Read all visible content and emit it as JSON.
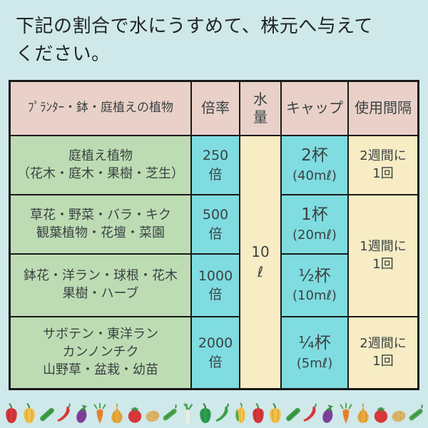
{
  "page": {
    "heading_line1": "下記の割合で水にうすめて、株元へ与えて",
    "heading_line2": "ください。"
  },
  "table": {
    "headers": {
      "plants": "ﾌﾟﾗﾝﾀｰ・鉢・庭植えの植物",
      "ratio": "倍率",
      "water": "水量",
      "cap": "キャップ",
      "interval": "使用間隔"
    },
    "water_amount": {
      "value": "10",
      "unit": "ℓ"
    },
    "merged_interval": {
      "line1": "1週間に",
      "line2": "1回"
    },
    "rows": [
      {
        "plants": [
          "庭植え植物",
          "（花木・庭木・果樹・芝生）"
        ],
        "ratio_value": "250",
        "ratio_unit": "倍",
        "cap": "2杯",
        "cap_ml": "(40mℓ)",
        "interval_line1": "2週間に",
        "interval_line2": "1回"
      },
      {
        "plants": [
          "草花・野菜・バラ・キク",
          "観葉植物・花壇・菜園"
        ],
        "ratio_value": "500",
        "ratio_unit": "倍",
        "cap": "1杯",
        "cap_ml": "(20mℓ)"
      },
      {
        "plants": [
          "鉢花・洋ラン・球根・花木",
          "果樹・ハーブ"
        ],
        "ratio_value": "1000",
        "ratio_unit": "倍",
        "cap": "½杯",
        "cap_ml": "(10mℓ)"
      },
      {
        "plants": [
          "サボテン・東洋ラン",
          "カンノンチク",
          "山野草・盆栽・幼苗"
        ],
        "ratio_value": "2000",
        "ratio_unit": "倍",
        "cap": "¼杯",
        "cap_ml": "(5mℓ)",
        "interval_line1": "2週間に",
        "interval_line2": "1回"
      }
    ]
  },
  "colors": {
    "page_background": "#cfe8ea",
    "header_cell": "#e9d1c9",
    "plants_cell": "#bddcb3",
    "highlight_cell": "#7fdce0",
    "neutral_cell": "#f7ecc3",
    "border": "#191919"
  },
  "footer": {
    "vegetables": [
      "red-bell-pepper",
      "yellow-bell-pepper",
      "cucumber",
      "red-chili",
      "eggplant",
      "carrot",
      "onion",
      "tomato",
      "potato",
      "pea",
      "green-onion",
      "green-bell-pepper",
      "green-chili",
      "corn",
      "red-bell-pepper",
      "yellow-bell-pepper",
      "cucumber",
      "red-chili",
      "eggplant",
      "carrot",
      "onion",
      "tomato",
      "potato",
      "pea"
    ]
  }
}
